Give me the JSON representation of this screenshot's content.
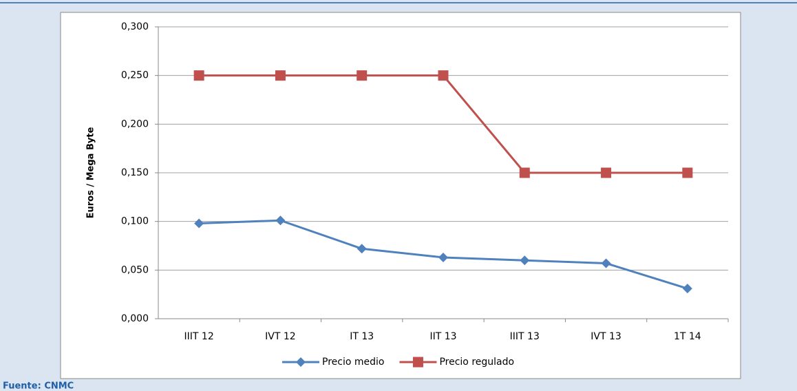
{
  "chart_data": {
    "type": "line",
    "y_label": "Euros / Mega Byte",
    "categories": [
      "IIIT 12",
      "IVT 12",
      "IT 13",
      "IIT 13",
      "IIIT 13",
      "IVT 13",
      "1T 14"
    ],
    "series": [
      {
        "name": "Precio medio",
        "color": "#4f81bd",
        "marker": "diamond",
        "values": [
          0.098,
          0.101,
          0.072,
          0.063,
          0.06,
          0.057,
          0.031
        ]
      },
      {
        "name": "Precio regulado",
        "color": "#c0504d",
        "marker": "square",
        "values": [
          0.25,
          0.25,
          0.25,
          0.25,
          0.15,
          0.15,
          0.15
        ]
      }
    ],
    "ylim": [
      0,
      0.3
    ],
    "yticks": [
      {
        "value": 0,
        "label": "0,000"
      },
      {
        "value": 0.05,
        "label": "0,050"
      },
      {
        "value": 0.1,
        "label": "0,100"
      },
      {
        "value": 0.15,
        "label": "0,150"
      },
      {
        "value": 0.2,
        "label": "0,200"
      },
      {
        "value": 0.25,
        "label": "0,250"
      },
      {
        "value": 0.3,
        "label": "0,300"
      }
    ],
    "grid": true,
    "legend": "bottom"
  },
  "source": "Fuente: CNMC"
}
